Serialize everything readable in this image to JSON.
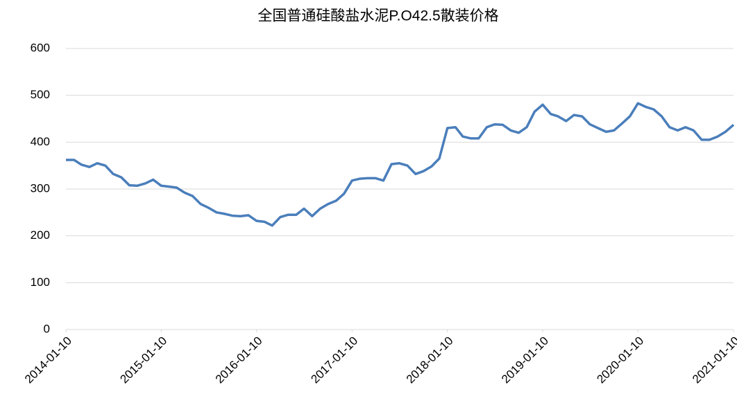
{
  "chart_data": {
    "type": "line",
    "title": "全国普通硅酸盐水泥P.O42.5散装价格",
    "x": [
      "2014-01-10",
      "2014-02-10",
      "2014-03-10",
      "2014-04-10",
      "2014-05-10",
      "2014-06-10",
      "2014-07-10",
      "2014-08-10",
      "2014-09-10",
      "2014-10-10",
      "2014-11-10",
      "2014-12-10",
      "2015-01-10",
      "2015-02-10",
      "2015-03-10",
      "2015-04-10",
      "2015-05-10",
      "2015-06-10",
      "2015-07-10",
      "2015-08-10",
      "2015-09-10",
      "2015-10-10",
      "2015-11-10",
      "2015-12-10",
      "2016-01-10",
      "2016-02-10",
      "2016-03-10",
      "2016-04-10",
      "2016-05-10",
      "2016-06-10",
      "2016-07-10",
      "2016-08-10",
      "2016-09-10",
      "2016-10-10",
      "2016-11-10",
      "2016-12-10",
      "2017-01-10",
      "2017-02-10",
      "2017-03-10",
      "2017-04-10",
      "2017-05-10",
      "2017-06-10",
      "2017-07-10",
      "2017-08-10",
      "2017-09-10",
      "2017-10-10",
      "2017-11-10",
      "2017-12-10",
      "2018-01-10",
      "2018-02-10",
      "2018-03-10",
      "2018-04-10",
      "2018-05-10",
      "2018-06-10",
      "2018-07-10",
      "2018-08-10",
      "2018-09-10",
      "2018-10-10",
      "2018-11-10",
      "2018-12-10",
      "2019-01-10",
      "2019-02-10",
      "2019-03-10",
      "2019-04-10",
      "2019-05-10",
      "2019-06-10",
      "2019-07-10",
      "2019-08-10",
      "2019-09-10",
      "2019-10-10",
      "2019-11-10",
      "2019-12-10",
      "2020-01-10",
      "2020-02-10",
      "2020-03-10",
      "2020-04-10",
      "2020-05-10",
      "2020-06-10",
      "2020-07-10",
      "2020-08-10",
      "2020-09-10",
      "2020-10-10",
      "2020-11-10",
      "2020-12-10",
      "2021-01-10"
    ],
    "series": [
      {
        "name": "全国普通硅酸盐水泥P.O42.5散装价格",
        "color": "#4a7ebb",
        "values": [
          362,
          362,
          352,
          347,
          355,
          350,
          332,
          325,
          308,
          307,
          312,
          320,
          307,
          305,
          303,
          292,
          285,
          268,
          260,
          250,
          247,
          243,
          242,
          244,
          232,
          230,
          222,
          240,
          245,
          245,
          258,
          242,
          258,
          268,
          275,
          290,
          318,
          322,
          323,
          323,
          318,
          353,
          355,
          350,
          332,
          338,
          348,
          365,
          430,
          432,
          412,
          408,
          408,
          432,
          438,
          437,
          425,
          420,
          432,
          465,
          480,
          460,
          455,
          445,
          458,
          455,
          438,
          430,
          422,
          425,
          440,
          455,
          483,
          475,
          470,
          455,
          432,
          425,
          432,
          425,
          405,
          405,
          412,
          422,
          437
        ]
      }
    ],
    "xlim": [
      "2014-01-10",
      "2021-01-10"
    ],
    "xticks": [
      "2014-01-10",
      "2015-01-10",
      "2016-01-10",
      "2017-01-10",
      "2018-01-10",
      "2019-01-10",
      "2020-01-10",
      "2021-01-10"
    ],
    "ylim": [
      0,
      600
    ],
    "yticks": [
      0,
      100,
      200,
      300,
      400,
      500,
      600
    ],
    "grid": true
  }
}
